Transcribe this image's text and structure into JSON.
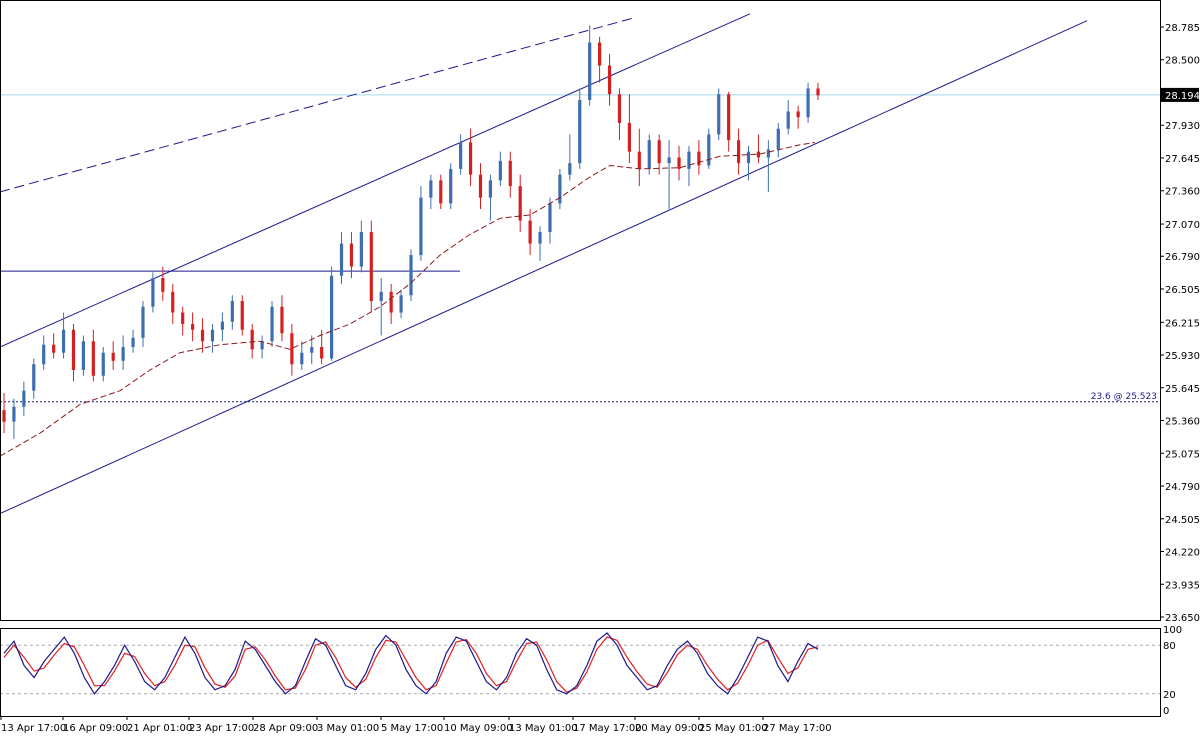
{
  "chart_data": {
    "type": "candlestick",
    "symbol": "",
    "price_axis": {
      "labels": [
        "28.785",
        "28.500",
        "28.215",
        "27.930",
        "27.645",
        "27.360",
        "27.070",
        "26.790",
        "26.505",
        "26.215",
        "25.930",
        "25.645",
        "25.360",
        "25.075",
        "24.790",
        "24.505",
        "24.220",
        "23.935",
        "23.650"
      ],
      "range": [
        23.65,
        28.9
      ]
    },
    "time_axis": {
      "labels": [
        "13 Apr 17:00",
        "16 Apr 09:00",
        "21 Apr 01:00",
        "23 Apr 17:00",
        "28 Apr 09:00",
        "3 May 01:00",
        "5 May 17:00",
        "10 May 09:00",
        "13 May 01:00",
        "17 May 17:00",
        "20 May 09:00",
        "25 May 01:00",
        "27 May 17:00"
      ]
    },
    "current_price": {
      "label": "28.194",
      "value": 28.194
    },
    "fib_level": {
      "label": "23.6 @ 25.523",
      "value": 25.523
    },
    "horizontal_resistance": {
      "value": 26.66
    },
    "moving_average": {
      "style": "dashed",
      "color": "#8b1a1a",
      "points": [
        [
          0,
          25.05
        ],
        [
          40,
          25.25
        ],
        [
          80,
          25.5
        ],
        [
          120,
          25.62
        ],
        [
          150,
          25.8
        ],
        [
          180,
          25.95
        ],
        [
          220,
          26.02
        ],
        [
          260,
          26.05
        ],
        [
          290,
          25.98
        ],
        [
          320,
          26.1
        ],
        [
          350,
          26.2
        ],
        [
          380,
          26.35
        ],
        [
          410,
          26.55
        ],
        [
          440,
          26.8
        ],
        [
          470,
          26.98
        ],
        [
          500,
          27.12
        ],
        [
          530,
          27.15
        ],
        [
          560,
          27.3
        ],
        [
          590,
          27.48
        ],
        [
          610,
          27.58
        ],
        [
          640,
          27.55
        ],
        [
          680,
          27.56
        ],
        [
          720,
          27.66
        ],
        [
          760,
          27.68
        ],
        [
          800,
          27.76
        ],
        [
          815,
          27.78
        ]
      ]
    },
    "channel": {
      "upper": {
        "from": [
          0,
          26.0
        ],
        "to": [
          750,
          28.9
        ]
      },
      "lower": {
        "from": [
          0,
          24.55
        ],
        "to": [
          1087,
          28.84
        ]
      },
      "outer_dashed": {
        "from": [
          0,
          27.35
        ],
        "to": [
          632,
          28.86
        ]
      }
    },
    "ohlc": [
      [
        25.45,
        25.6,
        25.25,
        25.35
      ],
      [
        25.35,
        25.55,
        25.2,
        25.48
      ],
      [
        25.48,
        25.7,
        25.4,
        25.62
      ],
      [
        25.62,
        25.9,
        25.55,
        25.85
      ],
      [
        25.85,
        26.1,
        25.8,
        26.02
      ],
      [
        26.02,
        26.12,
        25.9,
        25.95
      ],
      [
        25.95,
        26.3,
        25.9,
        26.15
      ],
      [
        26.15,
        26.2,
        25.7,
        25.8
      ],
      [
        25.8,
        26.1,
        25.75,
        26.05
      ],
      [
        26.05,
        26.15,
        25.7,
        25.75
      ],
      [
        25.75,
        26.0,
        25.7,
        25.95
      ],
      [
        25.95,
        26.05,
        25.8,
        25.88
      ],
      [
        25.88,
        26.1,
        25.8,
        26.0
      ],
      [
        26.0,
        26.15,
        25.95,
        26.08
      ],
      [
        26.08,
        26.4,
        26.0,
        26.35
      ],
      [
        26.35,
        26.65,
        26.3,
        26.6
      ],
      [
        26.6,
        26.7,
        26.4,
        26.48
      ],
      [
        26.48,
        26.55,
        26.2,
        26.3
      ],
      [
        26.3,
        26.35,
        26.1,
        26.2
      ],
      [
        26.2,
        26.3,
        26.05,
        26.15
      ],
      [
        26.15,
        26.25,
        25.95,
        26.05
      ],
      [
        26.05,
        26.2,
        25.95,
        26.15
      ],
      [
        26.15,
        26.3,
        26.05,
        26.22
      ],
      [
        26.22,
        26.45,
        26.15,
        26.4
      ],
      [
        26.4,
        26.45,
        26.1,
        26.15
      ],
      [
        26.15,
        26.2,
        25.9,
        25.98
      ],
      [
        25.98,
        26.1,
        25.9,
        26.05
      ],
      [
        26.05,
        26.4,
        26.0,
        26.35
      ],
      [
        26.35,
        26.45,
        26.05,
        26.12
      ],
      [
        26.12,
        26.2,
        25.75,
        25.85
      ],
      [
        25.85,
        26.05,
        25.8,
        25.95
      ],
      [
        25.95,
        26.1,
        25.85,
        26.0
      ],
      [
        26.0,
        26.15,
        25.85,
        25.9
      ],
      [
        25.9,
        26.7,
        25.88,
        26.62
      ],
      [
        26.62,
        27.0,
        26.55,
        26.9
      ],
      [
        26.9,
        27.0,
        26.6,
        26.7
      ],
      [
        26.7,
        27.1,
        26.65,
        27.0
      ],
      [
        27.0,
        27.1,
        26.3,
        26.4
      ],
      [
        26.4,
        26.6,
        26.1,
        26.48
      ],
      [
        26.48,
        26.55,
        26.2,
        26.3
      ],
      [
        26.3,
        26.5,
        26.25,
        26.45
      ],
      [
        26.45,
        26.85,
        26.4,
        26.8
      ],
      [
        26.8,
        27.4,
        26.75,
        27.3
      ],
      [
        27.3,
        27.5,
        27.2,
        27.45
      ],
      [
        27.45,
        27.5,
        27.2,
        27.25
      ],
      [
        27.25,
        27.6,
        27.2,
        27.55
      ],
      [
        27.55,
        27.85,
        27.5,
        27.78
      ],
      [
        27.78,
        27.9,
        27.4,
        27.5
      ],
      [
        27.5,
        27.6,
        27.2,
        27.3
      ],
      [
        27.3,
        27.5,
        27.1,
        27.45
      ],
      [
        27.45,
        27.7,
        27.4,
        27.62
      ],
      [
        27.62,
        27.7,
        27.3,
        27.4
      ],
      [
        27.4,
        27.5,
        27.0,
        27.1
      ],
      [
        27.1,
        27.2,
        26.8,
        26.9
      ],
      [
        26.9,
        27.05,
        26.75,
        27.0
      ],
      [
        27.0,
        27.3,
        26.9,
        27.25
      ],
      [
        27.25,
        27.55,
        27.2,
        27.5
      ],
      [
        27.5,
        27.85,
        27.45,
        27.6
      ],
      [
        27.6,
        28.25,
        27.55,
        28.15
      ],
      [
        28.15,
        28.8,
        28.1,
        28.65
      ],
      [
        28.65,
        28.7,
        28.3,
        28.45
      ],
      [
        28.45,
        28.55,
        28.1,
        28.2
      ],
      [
        28.2,
        28.25,
        27.8,
        27.95
      ],
      [
        27.95,
        28.2,
        27.6,
        27.7
      ],
      [
        27.7,
        27.9,
        27.4,
        27.55
      ],
      [
        27.55,
        27.85,
        27.5,
        27.8
      ],
      [
        27.8,
        27.85,
        27.5,
        27.6
      ],
      [
        27.6,
        27.8,
        27.2,
        27.65
      ],
      [
        27.65,
        27.75,
        27.45,
        27.55
      ],
      [
        27.55,
        27.75,
        27.4,
        27.7
      ],
      [
        27.7,
        27.8,
        27.5,
        27.58
      ],
      [
        27.58,
        27.9,
        27.55,
        27.85
      ],
      [
        27.85,
        28.25,
        27.8,
        28.2
      ],
      [
        28.2,
        28.22,
        27.7,
        27.8
      ],
      [
        27.8,
        27.9,
        27.5,
        27.6
      ],
      [
        27.6,
        27.75,
        27.45,
        27.7
      ],
      [
        27.7,
        27.85,
        27.6,
        27.65
      ],
      [
        27.65,
        27.8,
        27.35,
        27.72
      ],
      [
        27.72,
        27.95,
        27.65,
        27.9
      ],
      [
        27.9,
        28.15,
        27.85,
        28.05
      ],
      [
        28.05,
        28.1,
        27.9,
        28.0
      ],
      [
        28.0,
        28.3,
        27.95,
        28.25
      ],
      [
        28.25,
        28.3,
        28.15,
        28.19
      ]
    ],
    "stochastic": {
      "axis_labels": [
        "100",
        "80",
        "20",
        "0"
      ],
      "levels": [
        80,
        20
      ],
      "k": [
        70,
        85,
        55,
        40,
        60,
        75,
        90,
        70,
        40,
        20,
        35,
        55,
        80,
        60,
        35,
        25,
        40,
        65,
        90,
        70,
        40,
        25,
        30,
        50,
        85,
        75,
        55,
        35,
        20,
        30,
        60,
        88,
        80,
        55,
        30,
        25,
        45,
        75,
        92,
        80,
        50,
        30,
        20,
        35,
        70,
        90,
        85,
        60,
        35,
        25,
        40,
        70,
        88,
        80,
        50,
        25,
        20,
        30,
        55,
        85,
        95,
        80,
        55,
        40,
        25,
        30,
        55,
        75,
        85,
        70,
        45,
        30,
        20,
        40,
        65,
        90,
        85,
        55,
        35,
        60,
        82,
        75
      ],
      "d": [
        65,
        80,
        65,
        48,
        52,
        68,
        82,
        78,
        55,
        30,
        30,
        48,
        70,
        66,
        45,
        30,
        35,
        55,
        80,
        78,
        52,
        32,
        28,
        42,
        75,
        78,
        62,
        42,
        25,
        27,
        50,
        80,
        84,
        65,
        40,
        28,
        38,
        65,
        86,
        84,
        62,
        40,
        25,
        30,
        58,
        84,
        87,
        70,
        45,
        30,
        35,
        60,
        82,
        84,
        62,
        35,
        22,
        27,
        47,
        75,
        90,
        86,
        65,
        47,
        32,
        28,
        46,
        68,
        80,
        75,
        55,
        38,
        25,
        33,
        55,
        80,
        86,
        65,
        45,
        52,
        75,
        78
      ]
    }
  }
}
